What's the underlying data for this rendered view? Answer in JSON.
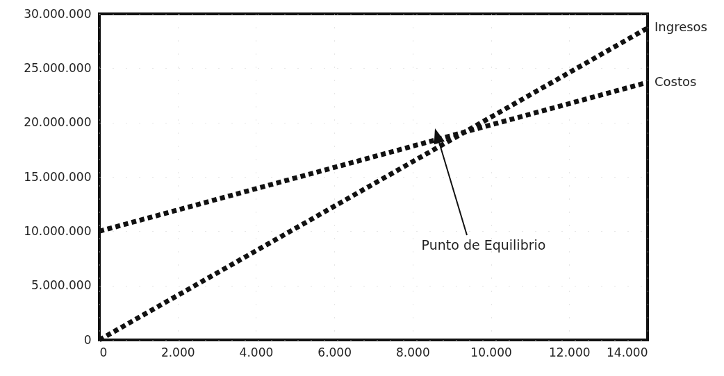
{
  "chart_data": {
    "type": "line",
    "x": [
      0,
      14000
    ],
    "series": [
      {
        "name": "Ingresos",
        "color": "#111111",
        "values": [
          0,
          28700000
        ]
      },
      {
        "name": "Costos",
        "color": "#111111",
        "values": [
          10000000,
          23700000
        ]
      }
    ],
    "xlim": [
      0,
      14000
    ],
    "xticks": [
      0,
      {
        "value": 2000,
        "label": "2.000"
      },
      {
        "value": 4000,
        "label": "4.000"
      },
      {
        "value": 6000,
        "label": "6.000"
      },
      {
        "value": 8000,
        "label": "8.000"
      },
      {
        "value": 10000,
        "label": "10.000"
      },
      {
        "value": 12000,
        "label": "12.000"
      },
      {
        "value": 14000,
        "label": "14.000"
      }
    ],
    "ylim": [
      0,
      30000000
    ],
    "yticks": [
      0,
      {
        "value": 5000000,
        "label": "5.000.000"
      },
      {
        "value": 10000000,
        "label": "10.000.000"
      },
      {
        "value": 15000000,
        "label": "15.000.000"
      },
      {
        "value": 20000000,
        "label": "20.000.000"
      },
      {
        "value": 25000000,
        "label": "25.000.000"
      },
      {
        "value": 30000000,
        "label": "30.000.000"
      }
    ],
    "grid": true,
    "line_style": "dashed",
    "marker": "none",
    "annotations": [
      "Punto de Equilibrio"
    ]
  }
}
